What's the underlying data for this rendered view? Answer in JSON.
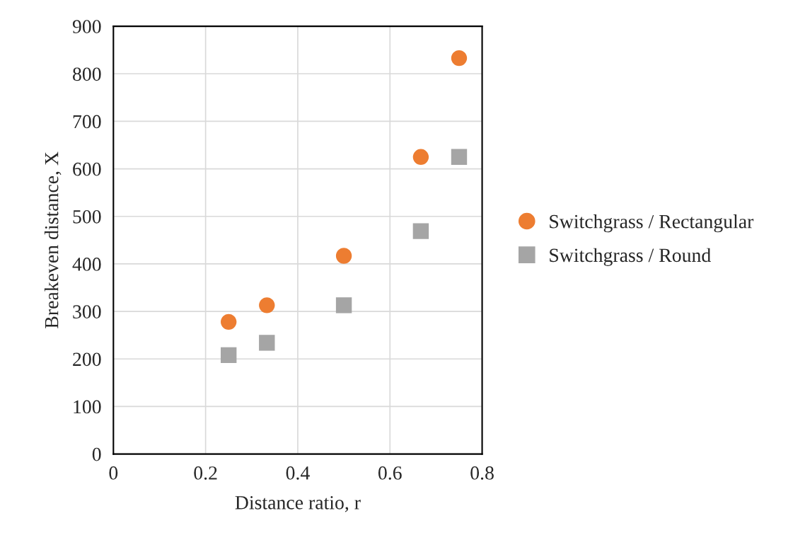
{
  "chart_data": {
    "type": "scatter",
    "xlabel": "Distance ratio, r",
    "ylabel": "Breakeven distance, X",
    "x": [
      0.25,
      0.333,
      0.5,
      0.667,
      0.75
    ],
    "series": [
      {
        "name": "Switchgrass / Rectangular",
        "color": "#ed7d31",
        "marker": "circle",
        "values": [
          278,
          313,
          417,
          625,
          833
        ]
      },
      {
        "name": "Switchgrass / Round",
        "color": "#a5a5a5",
        "marker": "square",
        "values": [
          208,
          234,
          313,
          469,
          625
        ]
      }
    ],
    "xlim": [
      0,
      0.8
    ],
    "xticks": [
      0,
      0.2,
      0.4,
      0.6,
      0.8
    ],
    "ylim": [
      0,
      900
    ],
    "yticks": [
      0,
      100,
      200,
      300,
      400,
      500,
      600,
      700,
      800,
      900
    ],
    "grid": true,
    "legend": "right"
  }
}
